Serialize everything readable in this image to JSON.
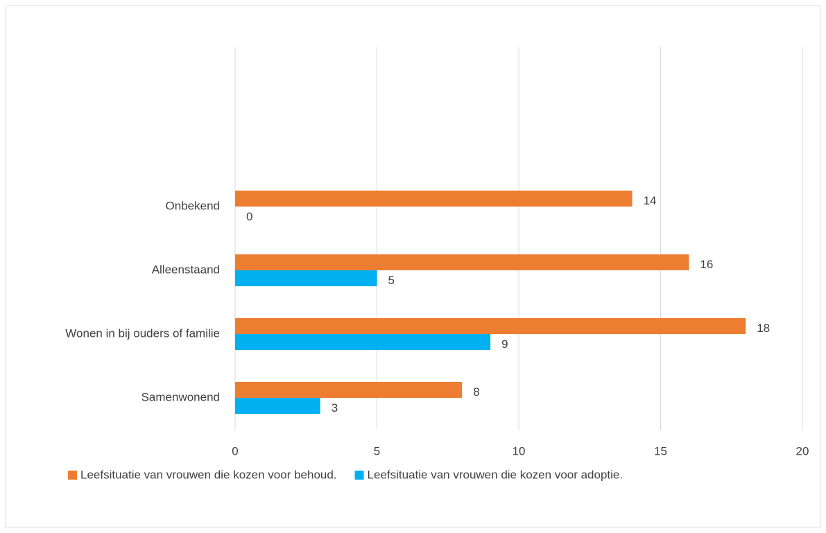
{
  "chart_data": {
    "type": "hbar",
    "categories": [
      "Samenwonend",
      "Wonen in bij ouders of familie",
      "Alleenstaand",
      "Onbekend",
      null,
      null
    ],
    "series": [
      {
        "name": "Leefsituatie van vrouwen die kozen voor behoud.",
        "color": "#ed7d31",
        "values": [
          8,
          18,
          16,
          14,
          null,
          null
        ]
      },
      {
        "name": "Leefsituatie van vrouwen die kozen voor adoptie.",
        "color": "#00b0f0",
        "values": [
          3,
          9,
          5,
          0,
          null,
          null
        ]
      }
    ],
    "xlim": [
      0,
      20
    ],
    "xticks": [
      0,
      5,
      10,
      15,
      20
    ],
    "grid": true,
    "legend": "bottom"
  }
}
